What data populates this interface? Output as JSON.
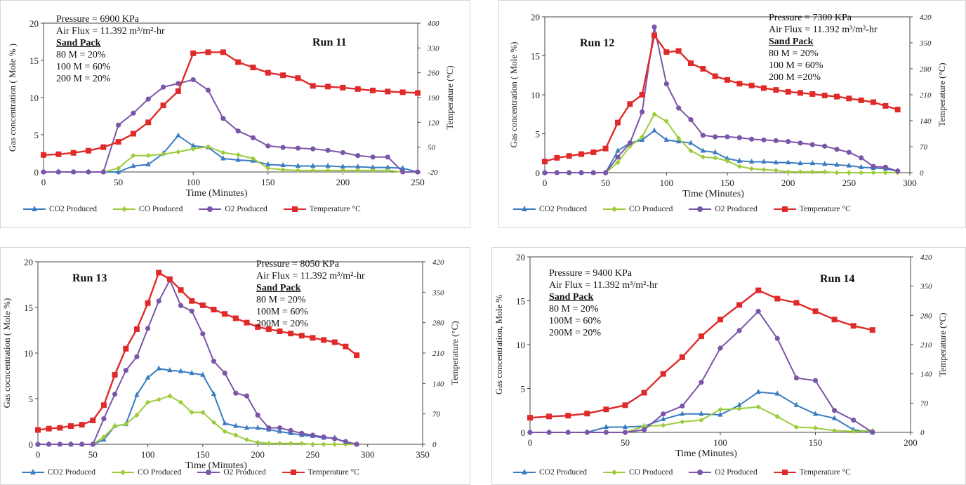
{
  "legend_labels": [
    "CO2  Produced",
    "CO Produced",
    "O2  Produced",
    "Temperature °C"
  ],
  "colors": {
    "co2": "#3a7cc2",
    "co": "#9ccc3c",
    "o2": "#7b55a8",
    "temp": "#e02a2a"
  },
  "chart_data": [
    {
      "type": "line",
      "run_label": "Run 11",
      "annotation": {
        "pressure": "Pressure = 6900 KPa",
        "air_flux": "Air Flux = 11.392 m³/m²-hr",
        "sand_pack": "Sand Pack",
        "lines": [
          "80 M = 20%",
          "100 M = 60%",
          "200 M = 20%"
        ]
      },
      "xlabel": "Time (Minutes)",
      "ylabel": "Gas concentration ( Mole % )",
      "y2label": "Temperature (°C)",
      "xlim": [
        0,
        250
      ],
      "xticks": [
        0,
        50,
        100,
        150,
        200,
        250
      ],
      "ylim": [
        0,
        20
      ],
      "yticks": [
        0,
        5,
        10,
        15,
        20
      ],
      "y2lim": [
        -20,
        400
      ],
      "y2ticks": [
        -20,
        50,
        120,
        190,
        260,
        330,
        400
      ],
      "x": [
        0,
        10,
        20,
        30,
        40,
        50,
        60,
        70,
        80,
        90,
        100,
        110,
        120,
        130,
        140,
        150,
        160,
        170,
        180,
        190,
        200,
        210,
        220,
        230,
        240,
        250
      ],
      "series": [
        {
          "name": "CO2  Produced",
          "axis": "left",
          "values": [
            0,
            0,
            0,
            0,
            0,
            0,
            0.8,
            1.0,
            2.5,
            4.9,
            3.5,
            3.3,
            1.8,
            1.6,
            1.5,
            1.0,
            0.9,
            0.8,
            0.8,
            0.8,
            0.7,
            0.7,
            0.6,
            0.6,
            0.5,
            0
          ]
        },
        {
          "name": "CO Produced",
          "axis": "left",
          "values": [
            0,
            0,
            0,
            0,
            0,
            0.5,
            2.2,
            2.2,
            2.4,
            2.7,
            3.1,
            3.4,
            2.6,
            2.3,
            1.8,
            0.5,
            0.3,
            0.2,
            0.2,
            0.2,
            0.2,
            0.2,
            0.2,
            0.2,
            0,
            0
          ]
        },
        {
          "name": "O2  Produced",
          "axis": "left",
          "values": [
            0,
            0,
            0,
            0,
            0,
            6.3,
            7.9,
            9.8,
            11.4,
            11.9,
            12.4,
            11.0,
            7.2,
            5.5,
            4.6,
            3.5,
            3.3,
            3.2,
            3.1,
            2.9,
            2.6,
            2.2,
            2.0,
            2.0,
            0,
            0
          ]
        },
        {
          "name": "Temperature °C",
          "axis": "right",
          "values": [
            28,
            30,
            34,
            40,
            50,
            65,
            88,
            120,
            168,
            208,
            315,
            318,
            318,
            290,
            275,
            260,
            253,
            245,
            223,
            221,
            218,
            214,
            210,
            207,
            205,
            203
          ]
        }
      ]
    },
    {
      "type": "line",
      "run_label": "Run 12",
      "annotation": {
        "pressure": "Pressure = 7300 KPa",
        "air_flux": "Air Flux = 11.392 m³/m²-hr",
        "sand_pack": "Sand Pack",
        "lines": [
          "80 M = 20%",
          "100 M = 60%",
          "200 M =20%"
        ]
      },
      "xlabel": "Time (Minutes)",
      "ylabel": "Gas concentration ( Mole %)",
      "y2label": "Temperature (°C)",
      "xlim": [
        0,
        300
      ],
      "xticks": [
        0,
        50,
        100,
        150,
        200,
        250,
        300
      ],
      "ylim": [
        0,
        20
      ],
      "yticks": [
        0,
        5,
        10,
        15,
        20
      ],
      "y2lim": [
        0,
        420
      ],
      "y2ticks": [
        0,
        70,
        140,
        210,
        280,
        350,
        420
      ],
      "x": [
        0,
        10,
        20,
        30,
        40,
        50,
        60,
        70,
        80,
        90,
        100,
        110,
        120,
        130,
        140,
        150,
        160,
        170,
        180,
        190,
        200,
        210,
        220,
        230,
        240,
        250,
        260,
        270,
        280,
        290
      ],
      "series": [
        {
          "name": "CO2  Produced",
          "axis": "left",
          "values": [
            0,
            0,
            0,
            0,
            0,
            0,
            2.8,
            3.8,
            4.2,
            5.4,
            4.2,
            4.0,
            3.8,
            2.8,
            2.6,
            1.8,
            1.5,
            1.4,
            1.4,
            1.3,
            1.3,
            1.2,
            1.2,
            1.1,
            1.0,
            0.9,
            0.7,
            0.6,
            0.5,
            0.2
          ]
        },
        {
          "name": "CO Produced",
          "axis": "left",
          "values": [
            0,
            0,
            0,
            0,
            0,
            0,
            1.3,
            3.4,
            4.6,
            7.5,
            6.6,
            4.4,
            2.8,
            2.0,
            1.9,
            1.5,
            0.8,
            0.5,
            0.4,
            0.3,
            0.1,
            0.1,
            0.1,
            0.1,
            0,
            0,
            0,
            0,
            0,
            0
          ]
        },
        {
          "name": "O2  Produced",
          "axis": "left",
          "values": [
            0,
            0,
            0,
            0,
            0,
            0,
            2.0,
            3.8,
            7.8,
            18.7,
            11.4,
            8.3,
            6.8,
            4.8,
            4.6,
            4.6,
            4.5,
            4.3,
            4.2,
            4.1,
            4.0,
            3.8,
            3.6,
            3.4,
            3.0,
            2.6,
            1.9,
            0.8,
            0.7,
            0.2
          ]
        },
        {
          "name": "Temperature °C",
          "axis": "right",
          "values": [
            30,
            40,
            45,
            50,
            55,
            65,
            135,
            185,
            210,
            370,
            325,
            328,
            295,
            280,
            260,
            250,
            240,
            235,
            228,
            223,
            218,
            215,
            212,
            208,
            205,
            200,
            195,
            190,
            180,
            170
          ]
        }
      ]
    },
    {
      "type": "line",
      "run_label": "Run 13",
      "annotation": {
        "pressure": "Pressure = 8050 KPa",
        "air_flux": "Air Flux = 11.392 m³/m²-hr",
        "sand_pack": "Sand Pack",
        "lines": [
          "80  M = 20%",
          "100M = 60%",
          "200M = 20%"
        ]
      },
      "xlabel": "Time (Minutes)",
      "ylabel": "Gas cocncentration ( Mole %)",
      "y2label": "Temperature (°C)",
      "xlim": [
        0,
        350
      ],
      "xticks": [
        0,
        50,
        100,
        150,
        200,
        250,
        300,
        350
      ],
      "ylim": [
        0,
        20
      ],
      "yticks": [
        0,
        5,
        10,
        15,
        20
      ],
      "y2lim": [
        0,
        420
      ],
      "y2ticks": [
        0,
        70,
        140,
        210,
        280,
        350,
        420
      ],
      "x": [
        0,
        10,
        20,
        30,
        40,
        50,
        60,
        70,
        80,
        90,
        100,
        110,
        120,
        130,
        140,
        150,
        160,
        170,
        180,
        190,
        200,
        210,
        220,
        230,
        240,
        250,
        260,
        270,
        280,
        290
      ],
      "series": [
        {
          "name": "CO2  Produced",
          "axis": "left",
          "values": [
            0,
            0,
            0,
            0,
            0,
            0,
            0.5,
            2.0,
            2.2,
            5.4,
            7.3,
            8.3,
            8.1,
            8.0,
            7.8,
            7.6,
            5.5,
            2.3,
            2.0,
            1.8,
            1.8,
            1.6,
            1.4,
            1.2,
            1.0,
            0.9,
            0.7,
            0.7,
            0.2,
            0
          ]
        },
        {
          "name": "CO Produced",
          "axis": "left",
          "values": [
            0,
            0,
            0,
            0,
            0,
            0,
            0.8,
            2.0,
            2.2,
            3.2,
            4.6,
            4.9,
            5.3,
            4.6,
            3.5,
            3.5,
            2.4,
            1.4,
            1.0,
            0.5,
            0.2,
            0.1,
            0.1,
            0.1,
            0.1,
            0,
            0,
            0,
            0,
            0
          ]
        },
        {
          "name": "O2  Produced",
          "axis": "left",
          "values": [
            0,
            0,
            0,
            0,
            0,
            0,
            2.8,
            5.5,
            8.1,
            9.6,
            12.7,
            15.7,
            18.0,
            15.2,
            14.6,
            12.1,
            9.1,
            7.8,
            5.6,
            5.3,
            3.2,
            1.8,
            1.8,
            1.5,
            1.2,
            1.0,
            0.8,
            0.6,
            0.3,
            0
          ]
        },
        {
          "name": "Temperature °C",
          "axis": "right",
          "values": [
            33,
            36,
            38,
            42,
            45,
            55,
            90,
            160,
            220,
            265,
            325,
            395,
            380,
            355,
            330,
            320,
            310,
            300,
            290,
            280,
            270,
            265,
            260,
            255,
            250,
            245,
            240,
            235,
            225,
            205
          ]
        }
      ]
    },
    {
      "type": "line",
      "run_label": "Run 14",
      "annotation": {
        "pressure": "Pressure = 9400 KPa",
        "air_flux": "Air Flux = 11.392 m³/m²-hr",
        "sand_pack": "Sand Pack",
        "lines": [
          "80  M = 20%",
          "100M = 60%",
          "200M = 20%"
        ]
      },
      "xlabel": "Time (Minutes)",
      "ylabel": "Gas concentration, Mole %",
      "y2label": "Temperature (°C)",
      "xlim": [
        0,
        200
      ],
      "xticks": [
        0,
        50,
        100,
        150,
        200
      ],
      "ylim": [
        0,
        20
      ],
      "yticks": [
        0,
        5,
        10,
        15,
        20
      ],
      "y2lim": [
        0,
        420
      ],
      "y2ticks": [
        0,
        70,
        140,
        210,
        280,
        350,
        420
      ],
      "x": [
        0,
        10,
        20,
        30,
        40,
        50,
        60,
        70,
        80,
        90,
        100,
        110,
        120,
        130,
        140,
        150,
        160,
        170,
        180
      ],
      "series": [
        {
          "name": "CO2  Produced",
          "axis": "left",
          "values": [
            0,
            0,
            0,
            0,
            0.6,
            0.6,
            0.7,
            1.5,
            2.1,
            2.1,
            2.0,
            3.1,
            4.6,
            4.4,
            3.1,
            2.1,
            1.6,
            0.3,
            0
          ]
        },
        {
          "name": "CO Produced",
          "axis": "left",
          "values": [
            0,
            0,
            0,
            0,
            0,
            0,
            0.7,
            0.8,
            1.2,
            1.4,
            2.6,
            2.7,
            2.9,
            1.8,
            0.6,
            0.5,
            0.2,
            0.1,
            0.2
          ]
        },
        {
          "name": "O2  Produced",
          "axis": "left",
          "values": [
            0,
            0,
            0,
            0,
            0,
            0,
            0.3,
            2.1,
            3.0,
            5.7,
            9.6,
            11.6,
            13.8,
            10.7,
            6.2,
            5.9,
            2.5,
            1.4,
            0
          ]
        },
        {
          "name": "Temperature °C",
          "axis": "right",
          "values": [
            35,
            38,
            40,
            45,
            55,
            65,
            95,
            140,
            180,
            230,
            270,
            305,
            340,
            320,
            310,
            290,
            270,
            255,
            245
          ]
        }
      ]
    }
  ]
}
